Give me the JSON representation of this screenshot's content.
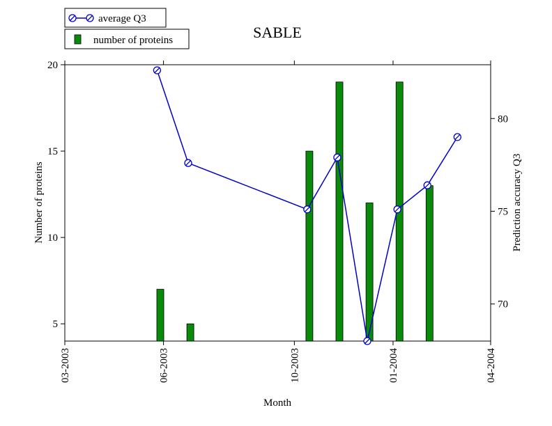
{
  "chart_data": {
    "type": "bar",
    "title": "SABLE",
    "xlabel": "Month",
    "ylabel_left": "Number of proteins",
    "ylabel_right": "Prediction accuracy Q3",
    "x_ticks": [
      "03-2003",
      "06-2003",
      "10-2003",
      "01-2004",
      "04-2004"
    ],
    "y_left_ticks": [
      "5",
      "10",
      "15",
      "20"
    ],
    "y_right_ticks": [
      "70",
      "75",
      "80"
    ],
    "ylim_left": [
      4,
      20
    ],
    "ylim_right": [
      68.0,
      82.9
    ],
    "xlim": [
      "2003-03-01",
      "2004-04-01"
    ],
    "grid": false,
    "legend_position": "top-left",
    "series": [
      {
        "name": "number of proteins",
        "kind": "bar",
        "color": "#0a8a0a",
        "points": [
          {
            "x": "2003-05-29",
            "y": 7
          },
          {
            "x": "2003-06-26",
            "y": 5
          },
          {
            "x": "2003-10-15",
            "y": 15
          },
          {
            "x": "2003-11-12",
            "y": 19
          },
          {
            "x": "2003-12-10",
            "y": 12
          },
          {
            "x": "2004-01-07",
            "y": 19
          },
          {
            "x": "2004-02-04",
            "y": 13
          }
        ]
      },
      {
        "name": "average Q3",
        "kind": "line",
        "color": "#0000cc",
        "points": [
          {
            "x": "2003-05-26",
            "y": 82.6
          },
          {
            "x": "2003-06-24",
            "y": 77.6
          },
          {
            "x": "2003-10-13",
            "y": 75.1
          },
          {
            "x": "2003-11-10",
            "y": 77.9
          },
          {
            "x": "2003-12-08",
            "y": 68.0
          },
          {
            "x": "2004-01-05",
            "y": 75.1
          },
          {
            "x": "2004-02-02",
            "y": 76.4
          },
          {
            "x": "2004-03-01",
            "y": 79.0
          }
        ]
      }
    ]
  }
}
